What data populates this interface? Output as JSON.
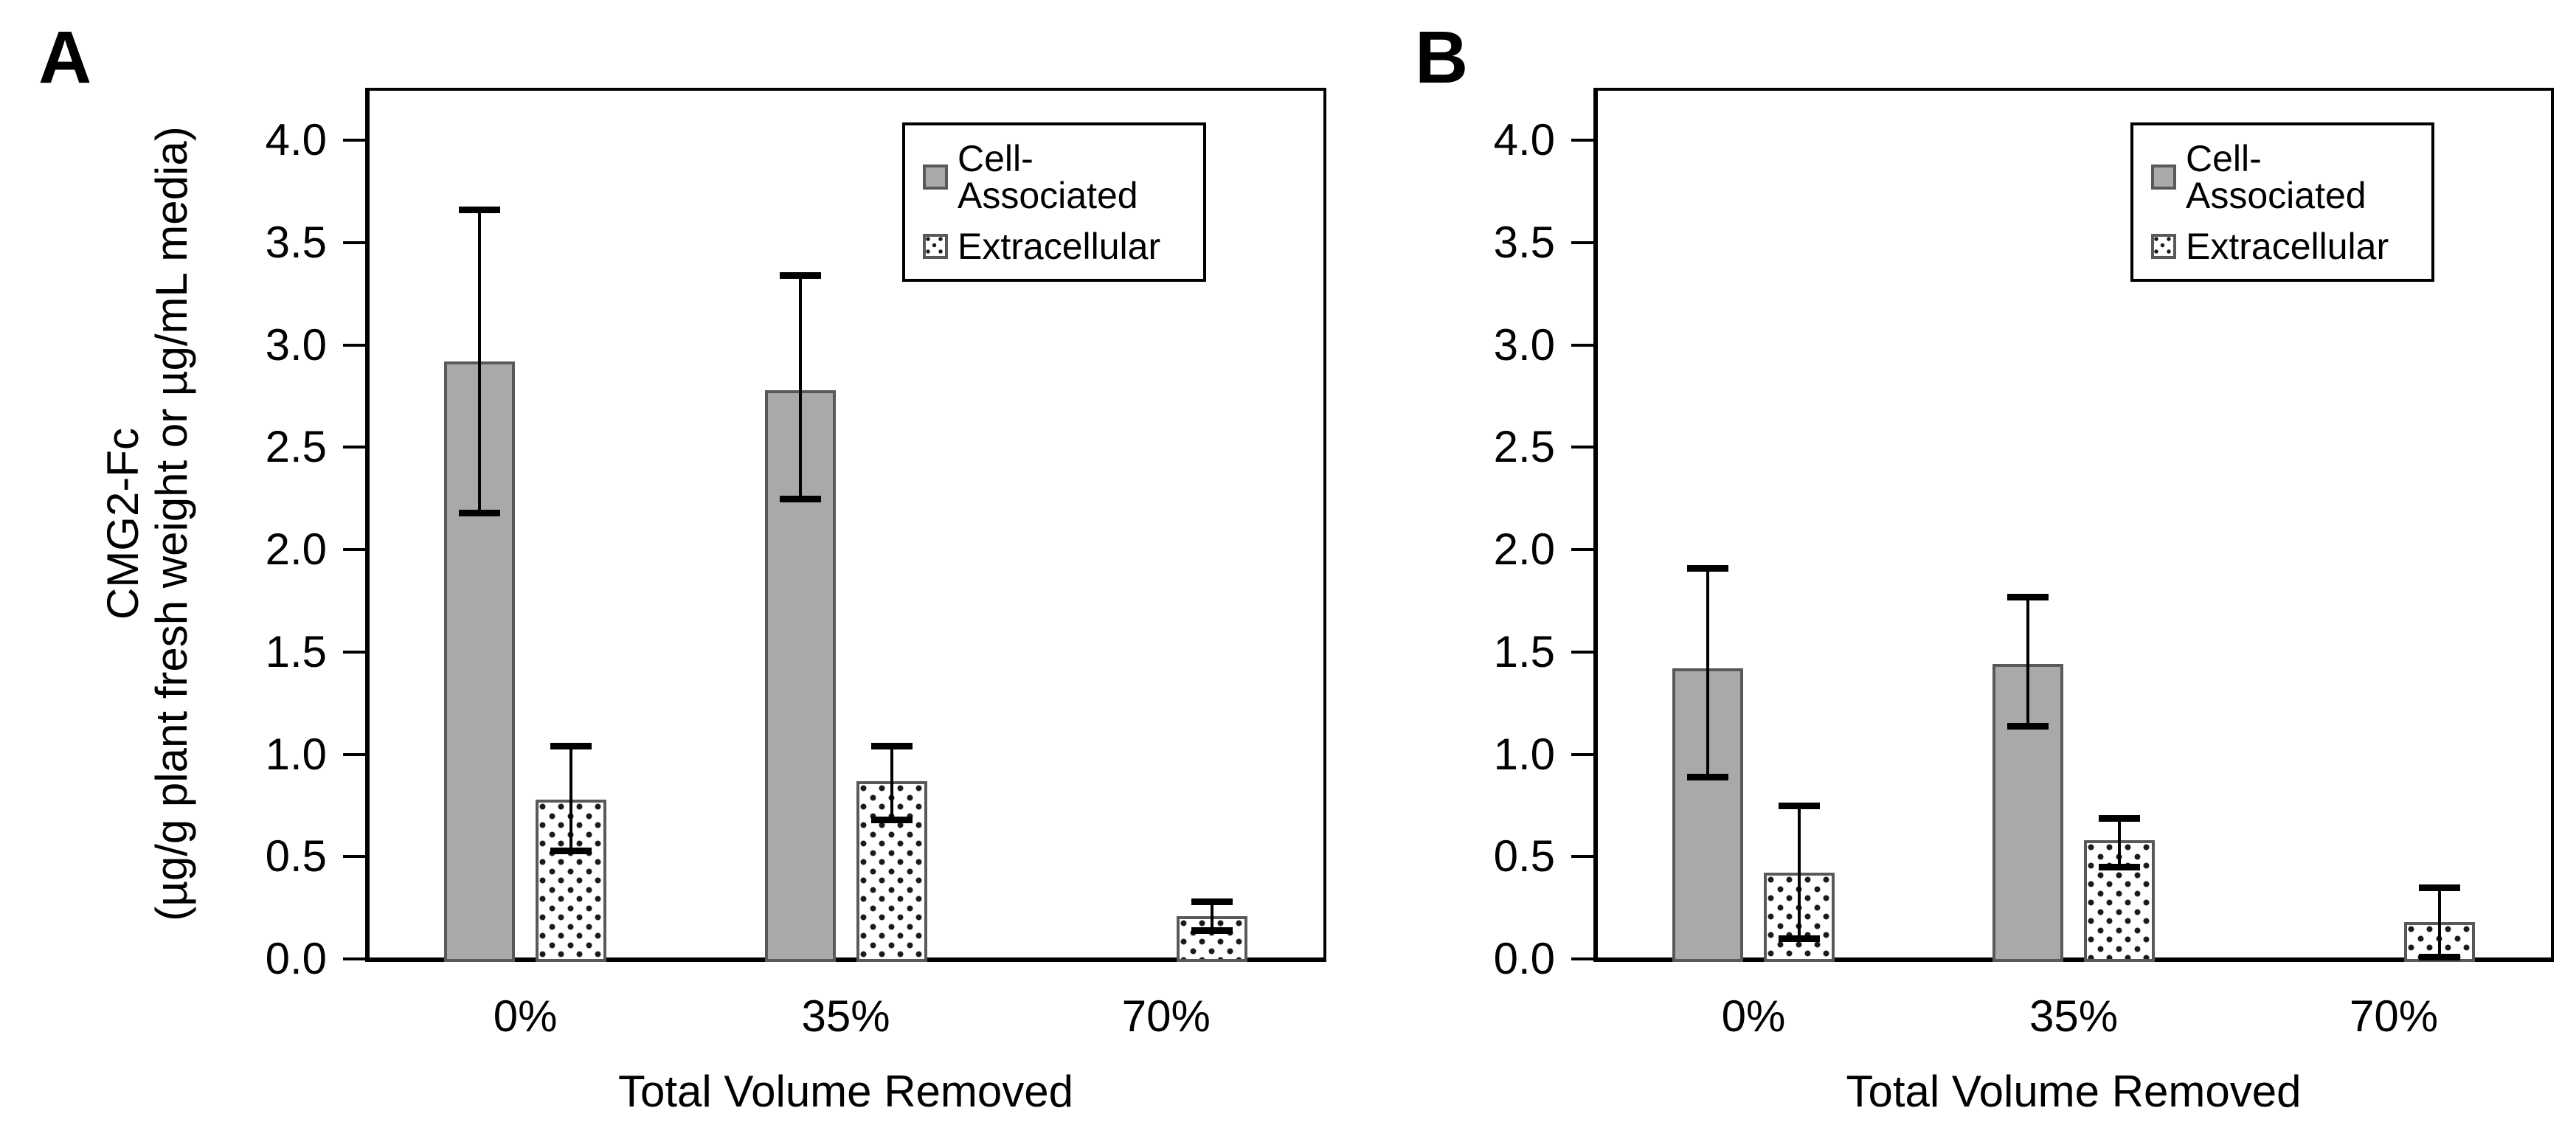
{
  "page": {
    "background": "#ffffff"
  },
  "colors": {
    "bar_fill_gray": "#a9a9a9",
    "bar_border_gray": "#595959",
    "dot_pattern_color": "#1a1a1a",
    "axis_color": "#000000",
    "text_color": "#000000"
  },
  "panels": [
    {
      "label": "A",
      "y_axis_title_line1": "CMG2-Fc",
      "y_axis_title_line2": "(µg/g plant fresh weight or µg/mL media)"
    },
    {
      "label": "B"
    }
  ],
  "chart_data": [
    {
      "type": "bar",
      "panel": "A",
      "categories": [
        "0%",
        "35%",
        "70%"
      ],
      "series": [
        {
          "name": "Cell-Associated",
          "style": "solid-gray",
          "values": [
            2.92,
            2.78,
            null
          ],
          "err_low": [
            2.18,
            2.25,
            null
          ],
          "err_high": [
            3.66,
            3.34,
            null
          ]
        },
        {
          "name": "Extracellular",
          "style": "dotted",
          "values": [
            0.78,
            0.87,
            0.21
          ],
          "err_low": [
            0.53,
            0.68,
            0.14
          ],
          "err_high": [
            1.04,
            1.04,
            0.28
          ]
        }
      ],
      "xlabel": "Total Volume Removed",
      "ylabel": "CMG2-Fc (µg/g plant fresh weight or µg/mL media)",
      "ylim": [
        0.0,
        4.25
      ],
      "ytick_step": 0.5,
      "yticks": [
        "0.0",
        "0.5",
        "1.0",
        "1.5",
        "2.0",
        "2.5",
        "3.0",
        "3.5",
        "4.0"
      ],
      "grid": false,
      "legend_position": "top-right"
    },
    {
      "type": "bar",
      "panel": "B",
      "categories": [
        "0%",
        "35%",
        "70%"
      ],
      "series": [
        {
          "name": "Cell-Associated",
          "style": "solid-gray",
          "values": [
            1.42,
            1.44,
            null
          ],
          "err_low": [
            0.89,
            1.14,
            null
          ],
          "err_high": [
            1.91,
            1.77,
            null
          ]
        },
        {
          "name": "Extracellular",
          "style": "dotted",
          "values": [
            0.42,
            0.58,
            0.18
          ],
          "err_low": [
            0.1,
            0.45,
            0.01
          ],
          "err_high": [
            0.75,
            0.69,
            0.35
          ]
        }
      ],
      "xlabel": "Total Volume Removed",
      "ylabel": "",
      "ylim": [
        0.0,
        4.25
      ],
      "ytick_step": 0.5,
      "yticks": [
        "0.0",
        "0.5",
        "1.0",
        "1.5",
        "2.0",
        "2.5",
        "3.0",
        "3.5",
        "4.0"
      ],
      "grid": false,
      "legend_position": "top-right"
    }
  ]
}
